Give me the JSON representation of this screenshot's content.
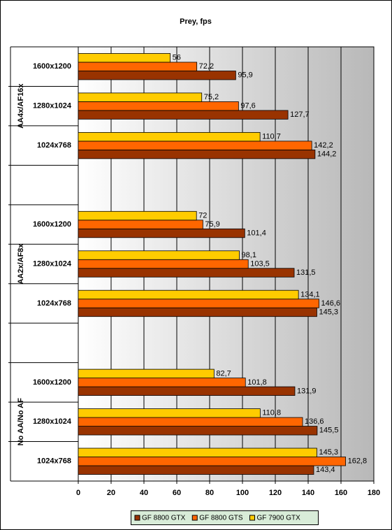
{
  "chart_data": {
    "type": "bar",
    "orientation": "horizontal",
    "title": "Prey, fps",
    "categories": [
      "1600x1200",
      "1280x1024",
      "1024x768",
      null,
      "1600x1200",
      "1280x1024",
      "1024x768",
      null,
      "1600x1200",
      "1280x1024",
      "1024x768"
    ],
    "groups": [
      "AA4x/AF16x",
      "AA2x/AF8x",
      "No AA/No AF"
    ],
    "series": [
      {
        "name": "GF 8800 GTX",
        "color": "#993300",
        "values": [
          95.9,
          127.7,
          144.2,
          null,
          101.4,
          131.5,
          145.3,
          null,
          131.9,
          145.5,
          143.4
        ],
        "value_labels": [
          "95,9",
          "127,7",
          "144,2",
          null,
          "101,4",
          "131,5",
          "145,3",
          null,
          "131,9",
          "145,5",
          "143,4"
        ]
      },
      {
        "name": "GF 8800 GTS",
        "color": "#ff6600",
        "values": [
          72.2,
          97.6,
          142.2,
          null,
          75.9,
          103.5,
          146.6,
          null,
          101.8,
          136.6,
          162.8
        ],
        "value_labels": [
          "72,2",
          "97,6",
          "142,2",
          null,
          "75,9",
          "103,5",
          "146,6",
          null,
          "101,8",
          "136,6",
          "162,8"
        ]
      },
      {
        "name": "GF 7900 GTX",
        "color": "#ffcc00",
        "values": [
          56,
          75.2,
          110.7,
          null,
          72,
          98.1,
          134.1,
          null,
          82.7,
          110.8,
          145.3
        ],
        "value_labels": [
          "56",
          "75,2",
          "110,7",
          null,
          "72",
          "98,1",
          "134,1",
          null,
          "82,7",
          "110,8",
          "145,3"
        ]
      }
    ],
    "xlim": [
      0,
      180
    ],
    "xticks": [
      0,
      20,
      40,
      60,
      80,
      100,
      120,
      140,
      160,
      180
    ],
    "grid": true,
    "legend": "bottom"
  }
}
